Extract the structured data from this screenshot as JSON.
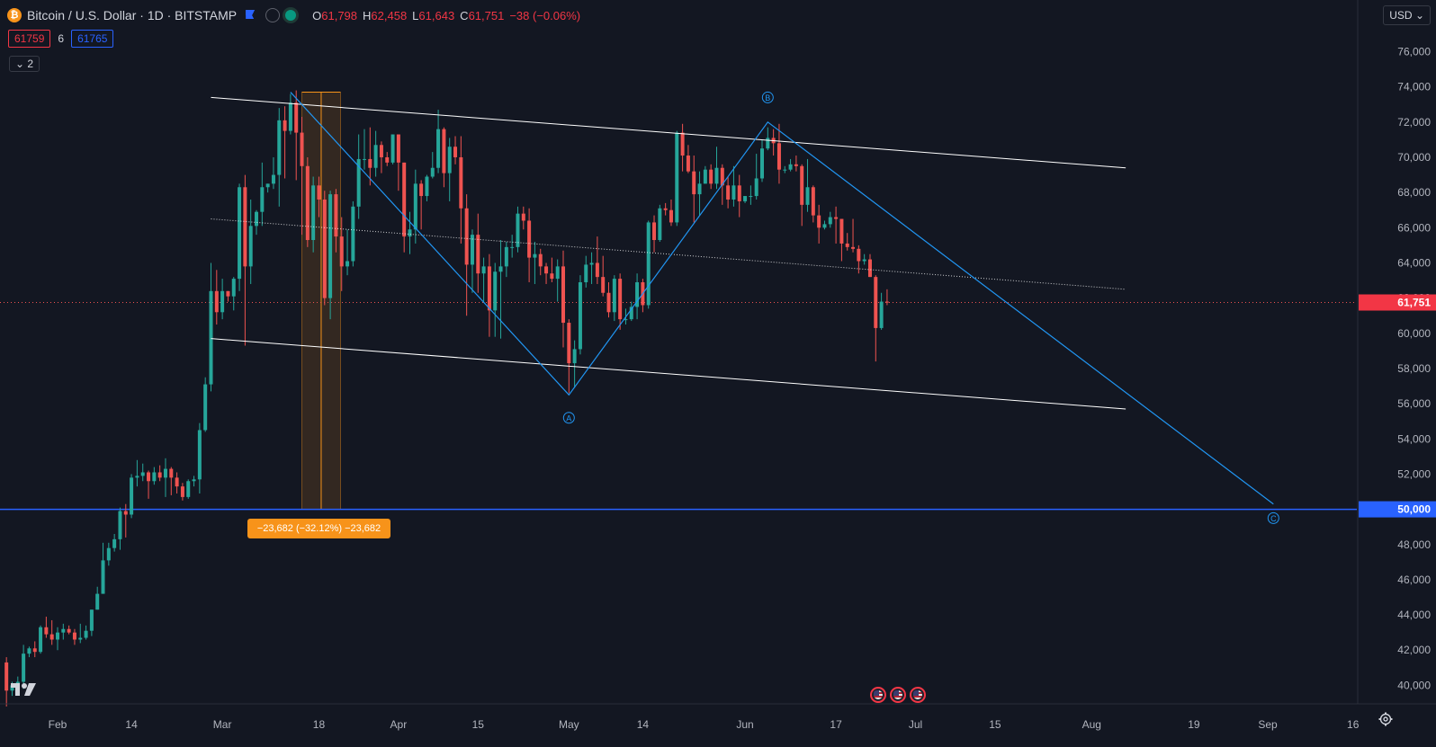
{
  "header": {
    "title": "Bitcoin / U.S. Dollar · 1D · BITSTAMP",
    "ohlc": {
      "o_label": "O",
      "o": "61,798",
      "h_label": "H",
      "h": "62,458",
      "l_label": "L",
      "l": "61,643",
      "c_label": "C",
      "c": "61,751",
      "change": "−38 (−0.06%)"
    }
  },
  "trade": {
    "sell": "61759",
    "spread": "6",
    "buy": "61765"
  },
  "indicators_count": "2",
  "currency": "USD",
  "colors": {
    "background": "#131722",
    "up": "#26a69a",
    "down": "#ef5350",
    "accent_blue": "#2962ff",
    "wave_line": "#2196f3",
    "measure": "#f7931a",
    "channel": "#ffffff"
  },
  "measure_label": "−23,682 (−32.12%) −23,682",
  "chart_data": {
    "type": "candlestick",
    "y_axis": {
      "min": 38700,
      "max": 77800,
      "ticks": [
        "40,000",
        "42,000",
        "44,000",
        "46,000",
        "48,000",
        "50,000",
        "52,000",
        "54,000",
        "56,000",
        "58,000",
        "60,000",
        "62,000",
        "64,000",
        "66,000",
        "68,000",
        "70,000",
        "72,000",
        "74,000",
        "76,000"
      ]
    },
    "x_axis_ticks": [
      {
        "label": "Feb",
        "date": "2024-02-01"
      },
      {
        "label": "14",
        "date": "2024-02-14"
      },
      {
        "label": "Mar",
        "date": "2024-03-01"
      },
      {
        "label": "18",
        "date": "2024-03-18"
      },
      {
        "label": "Apr",
        "date": "2024-04-01"
      },
      {
        "label": "15",
        "date": "2024-04-15"
      },
      {
        "label": "May",
        "date": "2024-05-01"
      },
      {
        "label": "14",
        "date": "2024-05-14"
      },
      {
        "label": "Jun",
        "date": "2024-06-01"
      },
      {
        "label": "17",
        "date": "2024-06-17"
      },
      {
        "label": "Jul",
        "date": "2024-07-01"
      },
      {
        "label": "15",
        "date": "2024-07-15"
      },
      {
        "label": "Aug",
        "date": "2024-08-01"
      },
      {
        "label": "19",
        "date": "2024-08-19"
      },
      {
        "label": "Sep",
        "date": "2024-09-01"
      },
      {
        "label": "16",
        "date": "2024-09-16"
      }
    ],
    "price_labels": {
      "last": "61,751",
      "horizontal_level": "50,000"
    },
    "horizontal_level": 50000,
    "last_price": 61751,
    "candles": [
      [
        "2024-01-23",
        41300,
        41600,
        38800,
        39700
      ],
      [
        "2024-01-24",
        39700,
        40200,
        39400,
        40000
      ],
      [
        "2024-01-25",
        40000,
        40500,
        39600,
        40200
      ],
      [
        "2024-01-26",
        40200,
        42300,
        39800,
        41800
      ],
      [
        "2024-01-27",
        41800,
        42200,
        41600,
        42100
      ],
      [
        "2024-01-28",
        42100,
        42500,
        41600,
        41900
      ],
      [
        "2024-01-29",
        41900,
        43400,
        41800,
        43300
      ],
      [
        "2024-01-30",
        43300,
        43900,
        42700,
        42900
      ],
      [
        "2024-01-31",
        42900,
        43700,
        42300,
        42600
      ],
      [
        "2024-02-01",
        42600,
        43300,
        42000,
        43000
      ],
      [
        "2024-02-02",
        43000,
        43500,
        42600,
        43200
      ],
      [
        "2024-02-03",
        43200,
        43400,
        42900,
        43000
      ],
      [
        "2024-02-04",
        43000,
        43200,
        42300,
        42600
      ],
      [
        "2024-02-05",
        42600,
        43500,
        42400,
        42700
      ],
      [
        "2024-02-06",
        42700,
        43400,
        42600,
        43100
      ],
      [
        "2024-02-07",
        43100,
        44300,
        42800,
        44300
      ],
      [
        "2024-02-08",
        44300,
        45600,
        44300,
        45200
      ],
      [
        "2024-02-09",
        45200,
        48100,
        45200,
        47100
      ],
      [
        "2024-02-10",
        47100,
        48100,
        46800,
        47800
      ],
      [
        "2024-02-11",
        47800,
        48600,
        47600,
        48300
      ],
      [
        "2024-02-12",
        48300,
        50100,
        47700,
        49900
      ],
      [
        "2024-02-13",
        49900,
        50300,
        48400,
        49700
      ],
      [
        "2024-02-14",
        49700,
        52000,
        49500,
        51800
      ],
      [
        "2024-02-15",
        51800,
        52800,
        51300,
        51900
      ],
      [
        "2024-02-16",
        51900,
        52600,
        51600,
        52100
      ],
      [
        "2024-02-17",
        52100,
        52200,
        50600,
        51600
      ],
      [
        "2024-02-18",
        51600,
        52400,
        51400,
        52100
      ],
      [
        "2024-02-19",
        52100,
        52500,
        51600,
        51800
      ],
      [
        "2024-02-20",
        51800,
        52900,
        50700,
        52300
      ],
      [
        "2024-02-21",
        52300,
        52400,
        50800,
        51800
      ],
      [
        "2024-02-22",
        51800,
        52100,
        50900,
        51300
      ],
      [
        "2024-02-23",
        51300,
        51500,
        50500,
        50700
      ],
      [
        "2024-02-24",
        50700,
        51700,
        50600,
        51600
      ],
      [
        "2024-02-25",
        51600,
        51900,
        51300,
        51700
      ],
      [
        "2024-02-26",
        51700,
        54900,
        50900,
        54500
      ],
      [
        "2024-02-27",
        54500,
        57500,
        54400,
        57100
      ],
      [
        "2024-02-28",
        57100,
        64000,
        56700,
        62400
      ],
      [
        "2024-02-29",
        62400,
        63600,
        60500,
        61200
      ],
      [
        "2024-03-01",
        61200,
        63100,
        60800,
        62400
      ],
      [
        "2024-03-02",
        62400,
        62400,
        61800,
        62100
      ],
      [
        "2024-03-03",
        62100,
        63200,
        61300,
        63100
      ],
      [
        "2024-03-04",
        63100,
        68500,
        62400,
        68300
      ],
      [
        "2024-03-05",
        68300,
        69000,
        59300,
        63800
      ],
      [
        "2024-03-06",
        63800,
        67600,
        62800,
        66100
      ],
      [
        "2024-03-07",
        66100,
        67000,
        65600,
        66900
      ],
      [
        "2024-03-08",
        66900,
        69700,
        66100,
        68300
      ],
      [
        "2024-03-09",
        68300,
        68500,
        68000,
        68500
      ],
      [
        "2024-03-10",
        68500,
        70000,
        68200,
        69000
      ],
      [
        "2024-03-11",
        69000,
        72800,
        67200,
        72100
      ],
      [
        "2024-03-12",
        72100,
        72900,
        68800,
        71500
      ],
      [
        "2024-03-13",
        71500,
        73600,
        71300,
        73100
      ],
      [
        "2024-03-14",
        73100,
        73800,
        68700,
        71400
      ],
      [
        "2024-03-15",
        71400,
        72300,
        65600,
        69500
      ],
      [
        "2024-03-16",
        69500,
        70000,
        64900,
        65300
      ],
      [
        "2024-03-17",
        65300,
        68900,
        64600,
        68400
      ],
      [
        "2024-03-18",
        68400,
        68900,
        66600,
        67600
      ],
      [
        "2024-03-19",
        67600,
        68100,
        61600,
        62000
      ],
      [
        "2024-03-20",
        62000,
        68100,
        60800,
        67900
      ],
      [
        "2024-03-21",
        67900,
        68200,
        64600,
        65500
      ],
      [
        "2024-03-22",
        65500,
        66600,
        62400,
        63800
      ],
      [
        "2024-03-23",
        63800,
        65900,
        63300,
        64100
      ],
      [
        "2024-03-24",
        64100,
        67500,
        63800,
        67200
      ],
      [
        "2024-03-25",
        67200,
        71300,
        66500,
        69900
      ],
      [
        "2024-03-26",
        69900,
        71600,
        69300,
        69900
      ],
      [
        "2024-03-27",
        69900,
        71700,
        68400,
        69400
      ],
      [
        "2024-03-28",
        69400,
        71500,
        68900,
        70700
      ],
      [
        "2024-03-29",
        70700,
        70900,
        69100,
        70000
      ],
      [
        "2024-03-30",
        70000,
        70300,
        69500,
        69700
      ],
      [
        "2024-03-31",
        69700,
        71300,
        69600,
        71300
      ],
      [
        "2024-04-01",
        71300,
        71300,
        68100,
        69700
      ],
      [
        "2024-04-02",
        69700,
        69700,
        64600,
        65500
      ],
      [
        "2024-04-03",
        65500,
        66900,
        64500,
        65900
      ],
      [
        "2024-04-04",
        65900,
        69300,
        65100,
        68500
      ],
      [
        "2024-04-05",
        68500,
        68700,
        65900,
        67800
      ],
      [
        "2024-04-06",
        67800,
        69000,
        67500,
        68900
      ],
      [
        "2024-04-07",
        68900,
        70300,
        68800,
        69400
      ],
      [
        "2024-04-08",
        69400,
        72700,
        69100,
        71600
      ],
      [
        "2024-04-09",
        71600,
        71700,
        68300,
        69100
      ],
      [
        "2024-04-10",
        69100,
        71100,
        67500,
        70600
      ],
      [
        "2024-04-11",
        70600,
        71200,
        69600,
        70000
      ],
      [
        "2024-04-12",
        70000,
        71200,
        65100,
        67100
      ],
      [
        "2024-04-13",
        67100,
        67900,
        61000,
        63900
      ],
      [
        "2024-04-14",
        63900,
        65900,
        62300,
        65600
      ],
      [
        "2024-04-15",
        65600,
        66800,
        62300,
        63400
      ],
      [
        "2024-04-16",
        63400,
        64300,
        61800,
        63800
      ],
      [
        "2024-04-17",
        63800,
        64500,
        59800,
        61300
      ],
      [
        "2024-04-18",
        61300,
        64000,
        59800,
        63500
      ],
      [
        "2024-04-19",
        63500,
        65300,
        59700,
        63800
      ],
      [
        "2024-04-20",
        63800,
        65200,
        63200,
        64900
      ],
      [
        "2024-04-21",
        64900,
        65600,
        64300,
        64900
      ],
      [
        "2024-04-22",
        64900,
        67200,
        64600,
        66800
      ],
      [
        "2024-04-23",
        66800,
        67200,
        65900,
        66400
      ],
      [
        "2024-04-24",
        66400,
        67100,
        62900,
        64300
      ],
      [
        "2024-04-25",
        64300,
        65200,
        62800,
        64500
      ],
      [
        "2024-04-26",
        64500,
        64800,
        63300,
        63800
      ],
      [
        "2024-04-27",
        63800,
        64000,
        62800,
        63400
      ],
      [
        "2024-04-28",
        63400,
        64300,
        62900,
        63100
      ],
      [
        "2024-04-29",
        63100,
        64200,
        61800,
        63800
      ],
      [
        "2024-04-30",
        63800,
        64700,
        59200,
        60600
      ],
      [
        "2024-05-01",
        60600,
        60800,
        56600,
        58300
      ],
      [
        "2024-05-02",
        58300,
        59600,
        56900,
        59100
      ],
      [
        "2024-05-03",
        59100,
        63300,
        58800,
        62900
      ],
      [
        "2024-05-04",
        62900,
        64400,
        62600,
        63900
      ],
      [
        "2024-05-05",
        63900,
        64600,
        62800,
        64000
      ],
      [
        "2024-05-06",
        64000,
        65500,
        62800,
        63200
      ],
      [
        "2024-05-07",
        63200,
        64400,
        62100,
        62300
      ],
      [
        "2024-05-08",
        62300,
        62900,
        60900,
        61200
      ],
      [
        "2024-05-09",
        61200,
        63300,
        60700,
        63100
      ],
      [
        "2024-05-10",
        63100,
        63400,
        60200,
        60800
      ],
      [
        "2024-05-11",
        60800,
        61400,
        60500,
        60800
      ],
      [
        "2024-05-12",
        60800,
        61800,
        60700,
        61500
      ],
      [
        "2024-05-13",
        61500,
        63400,
        60800,
        62900
      ],
      [
        "2024-05-14",
        62900,
        63100,
        61200,
        61600
      ],
      [
        "2024-05-15",
        61600,
        66400,
        61400,
        66300
      ],
      [
        "2024-05-16",
        66300,
        66700,
        64600,
        65300
      ],
      [
        "2024-05-17",
        65300,
        67300,
        65200,
        67100
      ],
      [
        "2024-05-18",
        67100,
        67400,
        66700,
        67000
      ],
      [
        "2024-05-19",
        67000,
        67600,
        66100,
        66300
      ],
      [
        "2024-05-20",
        66300,
        71500,
        66100,
        71400
      ],
      [
        "2024-05-21",
        71400,
        71900,
        69200,
        70100
      ],
      [
        "2024-05-22",
        70100,
        70700,
        69100,
        69200
      ],
      [
        "2024-05-23",
        69200,
        70100,
        66300,
        67900
      ],
      [
        "2024-05-24",
        67900,
        69200,
        66700,
        68500
      ],
      [
        "2024-05-25",
        68500,
        69500,
        68500,
        69300
      ],
      [
        "2024-05-26",
        69300,
        69600,
        68200,
        68500
      ],
      [
        "2024-05-27",
        68500,
        70600,
        68200,
        69400
      ],
      [
        "2024-05-28",
        69400,
        69600,
        67300,
        68400
      ],
      [
        "2024-05-29",
        68400,
        68900,
        67100,
        67600
      ],
      [
        "2024-05-30",
        67600,
        69500,
        67200,
        68400
      ],
      [
        "2024-05-31",
        68400,
        69000,
        66600,
        67500
      ],
      [
        "2024-06-01",
        67500,
        67800,
        67400,
        67800
      ],
      [
        "2024-06-02",
        67800,
        68400,
        67300,
        67800
      ],
      [
        "2024-06-03",
        67800,
        70200,
        67600,
        68800
      ],
      [
        "2024-06-04",
        68800,
        71000,
        68600,
        70500
      ],
      [
        "2024-06-05",
        70500,
        71700,
        70400,
        71100
      ],
      [
        "2024-06-06",
        71100,
        71600,
        70100,
        70800
      ],
      [
        "2024-06-07",
        70800,
        71900,
        68500,
        69300
      ],
      [
        "2024-06-08",
        69300,
        69500,
        69100,
        69300
      ],
      [
        "2024-06-09",
        69300,
        69900,
        69200,
        69600
      ],
      [
        "2024-06-10",
        69600,
        70100,
        69200,
        69500
      ],
      [
        "2024-06-11",
        69500,
        69600,
        66100,
        67300
      ],
      [
        "2024-06-12",
        67300,
        69900,
        66900,
        68300
      ],
      [
        "2024-06-13",
        68300,
        68400,
        66300,
        66700
      ],
      [
        "2024-06-14",
        66700,
        67300,
        65100,
        66000
      ],
      [
        "2024-06-15",
        66000,
        66400,
        65900,
        66200
      ],
      [
        "2024-06-16",
        66200,
        66900,
        66000,
        66600
      ],
      [
        "2024-06-17",
        66600,
        67200,
        65100,
        66500
      ],
      [
        "2024-06-18",
        66500,
        66500,
        64100,
        65100
      ],
      [
        "2024-06-19",
        65100,
        65700,
        64700,
        64900
      ],
      [
        "2024-06-20",
        64900,
        66500,
        64600,
        64800
      ],
      [
        "2024-06-21",
        64800,
        65000,
        63400,
        64100
      ],
      [
        "2024-06-22",
        64100,
        64500,
        63900,
        64200
      ],
      [
        "2024-06-23",
        64200,
        64500,
        63200,
        63200
      ],
      [
        "2024-06-24",
        63200,
        63300,
        58400,
        60300
      ],
      [
        "2024-06-25",
        60300,
        62300,
        60200,
        61800
      ],
      [
        "2024-06-26",
        61800,
        62500,
        61600,
        61751
      ]
    ],
    "drawings": {
      "channel_upper": {
        "start": [
          "2024-02-28",
          73400
        ],
        "end": [
          "2024-08-07",
          69400
        ]
      },
      "channel_mid": {
        "start": [
          "2024-02-28",
          66500
        ],
        "end": [
          "2024-08-07",
          62500
        ]
      },
      "channel_lower": {
        "start": [
          "2024-02-28",
          59700
        ],
        "end": [
          "2024-08-07",
          55700
        ]
      },
      "wave_points": [
        {
          "date": "2024-03-13",
          "price": 73700
        },
        {
          "date": "2024-05-01",
          "price": 56500
        },
        {
          "date": "2024-06-05",
          "price": 72000
        },
        {
          "date": "2024-09-02",
          "price": 50300
        }
      ],
      "wave_labels": [
        {
          "label": "A",
          "date": "2024-05-01",
          "price": 55200
        },
        {
          "label": "B",
          "date": "2024-06-05",
          "price": 73400
        },
        {
          "label": "C",
          "date": "2024-09-02",
          "price": 49500
        }
      ],
      "measure": {
        "start_date": "2024-03-15",
        "end_date": "2024-03-21",
        "from_price": 73700,
        "to_price": 50000
      }
    }
  }
}
